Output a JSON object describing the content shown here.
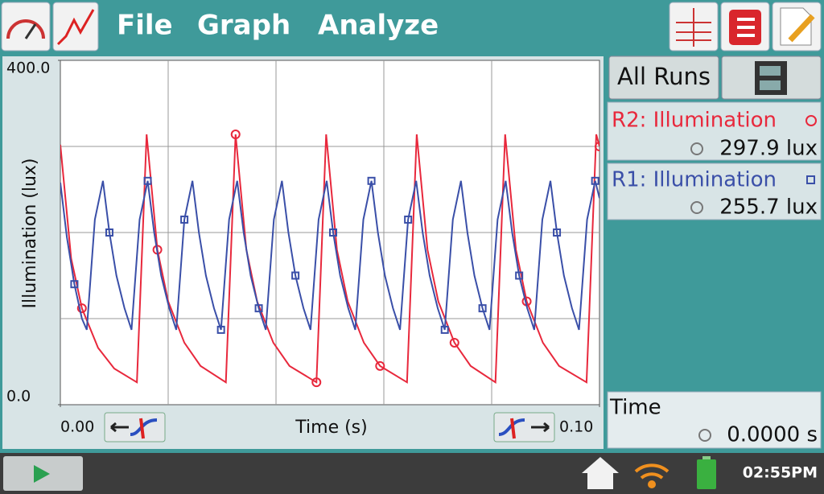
{
  "menu": [
    "File",
    "Graph",
    "Analyze"
  ],
  "chart_data": {
    "type": "line",
    "xlabel": "Time (s)",
    "ylabel": "Illumination (lux)",
    "xlim": [
      0,
      0.1
    ],
    "ylim": [
      0,
      400
    ],
    "xticks": [
      {
        "value": 0,
        "label": "0.00"
      },
      {
        "value": 0.1,
        "label": "0.10"
      }
    ],
    "yticks": [
      {
        "value": 0,
        "label": "0.0"
      },
      {
        "value": 400,
        "label": "400.0"
      }
    ],
    "grid": true,
    "xgrid": [
      0.02,
      0.04,
      0.06,
      0.08
    ],
    "ygrid": [
      100,
      200,
      300
    ],
    "series": [
      {
        "name": "R2: Illumination",
        "color": "#e8283c",
        "marker": "circle",
        "reading": "297.9 lux",
        "x": [
          0,
          0.002,
          0.004,
          0.007,
          0.01,
          0.0142,
          0.016,
          0.018,
          0.02,
          0.023,
          0.026,
          0.0307,
          0.0325,
          0.0345,
          0.0365,
          0.0395,
          0.0425,
          0.0475,
          0.0493,
          0.0513,
          0.0533,
          0.0563,
          0.0593,
          0.0643,
          0.0661,
          0.0681,
          0.0701,
          0.0731,
          0.0761,
          0.0807,
          0.0825,
          0.0845,
          0.0865,
          0.0895,
          0.0925,
          0.0976,
          0.0994,
          0.1
        ],
        "values": [
          302,
          170,
          112,
          66,
          42,
          26,
          314,
          180,
          120,
          72,
          45,
          26,
          314,
          180,
          120,
          72,
          45,
          26,
          314,
          180,
          120,
          72,
          45,
          26,
          314,
          180,
          120,
          72,
          45,
          26,
          314,
          180,
          120,
          72,
          45,
          26,
          314,
          300
        ]
      },
      {
        "name": "R1: Illumination",
        "color": "#3a4fa8",
        "marker": "square",
        "reading": "255.7 lux",
        "x": [
          0,
          0.0012,
          0.0026,
          0.004,
          0.0049,
          0.0064,
          0.0079,
          0.0091,
          0.0104,
          0.0119,
          0.0132,
          0.0147,
          0.0162,
          0.0174,
          0.0187,
          0.0202,
          0.0215,
          0.023,
          0.0245,
          0.0257,
          0.027,
          0.0285,
          0.0298,
          0.0313,
          0.0328,
          0.034,
          0.0353,
          0.0368,
          0.0381,
          0.0396,
          0.0411,
          0.0423,
          0.0436,
          0.0451,
          0.0464,
          0.0479,
          0.0494,
          0.0506,
          0.0519,
          0.0534,
          0.0547,
          0.0562,
          0.0577,
          0.0589,
          0.0602,
          0.0617,
          0.063,
          0.0645,
          0.066,
          0.0672,
          0.0685,
          0.07,
          0.0713,
          0.0728,
          0.0743,
          0.0755,
          0.0768,
          0.0783,
          0.0796,
          0.0811,
          0.0826,
          0.0838,
          0.0851,
          0.0866,
          0.0879,
          0.0894,
          0.0909,
          0.0921,
          0.0934,
          0.0949,
          0.0962,
          0.0977,
          0.0992,
          0.1
        ],
        "values": [
          258,
          195,
          140,
          100,
          87,
          215,
          260,
          200,
          150,
          112,
          87,
          215,
          260,
          200,
          150,
          112,
          87,
          215,
          260,
          200,
          150,
          112,
          87,
          215,
          260,
          200,
          150,
          112,
          87,
          215,
          260,
          200,
          150,
          112,
          87,
          215,
          260,
          200,
          150,
          112,
          87,
          215,
          260,
          200,
          150,
          112,
          87,
          215,
          260,
          200,
          150,
          112,
          87,
          215,
          260,
          200,
          150,
          112,
          87,
          215,
          260,
          200,
          150,
          112,
          87,
          215,
          260,
          200,
          150,
          112,
          87,
          215,
          260,
          240
        ]
      }
    ]
  },
  "sidebar": {
    "all_runs": "All Runs",
    "time_meter": {
      "label": "Time",
      "reading": "0.0000 s"
    }
  },
  "status_bar": {
    "clock": "02:55PM"
  }
}
